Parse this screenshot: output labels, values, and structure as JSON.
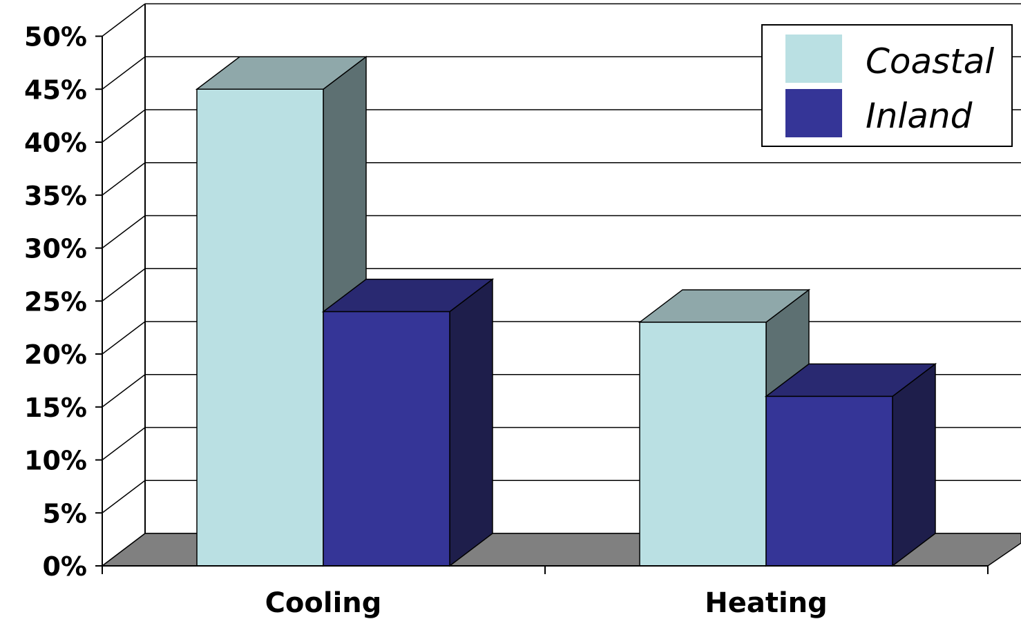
{
  "chart_data": {
    "type": "bar",
    "categories": [
      "Cooling",
      "Heating"
    ],
    "series": [
      {
        "name": "Coastal",
        "values": [
          45,
          23
        ]
      },
      {
        "name": "Inland",
        "values": [
          24,
          16
        ]
      }
    ],
    "title": "",
    "xlabel": "",
    "ylabel": "",
    "ylim": [
      0,
      50
    ],
    "ytick_step": 5,
    "ytick_labels": [
      "0%",
      "5%",
      "10%",
      "15%",
      "20%",
      "25%",
      "30%",
      "35%",
      "40%",
      "45%",
      "50%"
    ],
    "grid": true,
    "three_d": true,
    "legend_position": "top-right"
  },
  "colors": {
    "coastal_front": "#bae0e3",
    "coastal_top": "#8fa8aa",
    "coastal_side": "#5d7072",
    "inland_front": "#353597",
    "inland_top": "#292971",
    "inland_side": "#1e1e4b",
    "floor": "#808080",
    "background": "#ffffff",
    "gridline": "#000000"
  }
}
